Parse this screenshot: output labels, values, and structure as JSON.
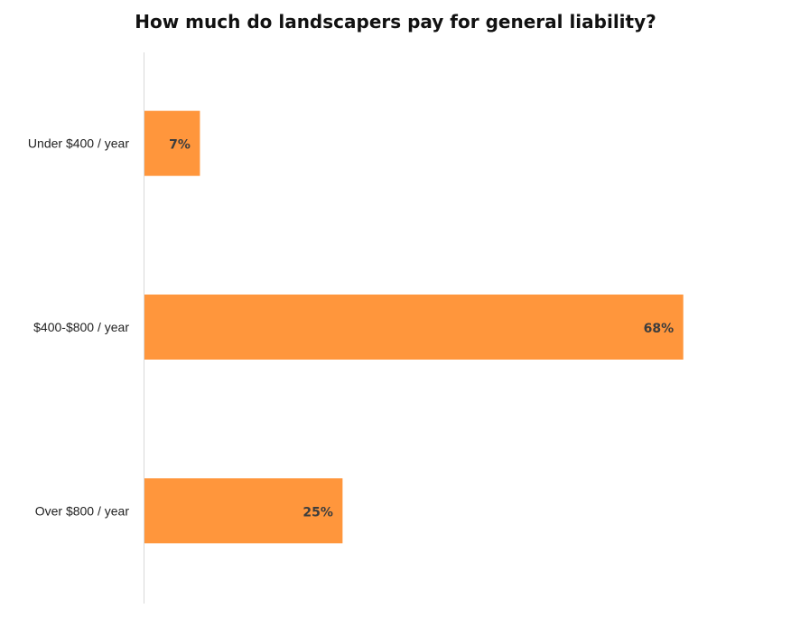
{
  "chart_data": {
    "type": "bar",
    "orientation": "horizontal",
    "title": "How much do landscapers pay for general liability?",
    "categories": [
      "Under $400 / year",
      "$400-$800 / year",
      "Over $800 / year"
    ],
    "values": [
      7,
      68,
      25
    ],
    "data_labels": [
      "7%",
      "68%",
      "25%"
    ],
    "xlim": [
      0,
      80
    ],
    "grid": false,
    "bar_color": "#FF963C",
    "label_color": "#3D3D3D"
  }
}
